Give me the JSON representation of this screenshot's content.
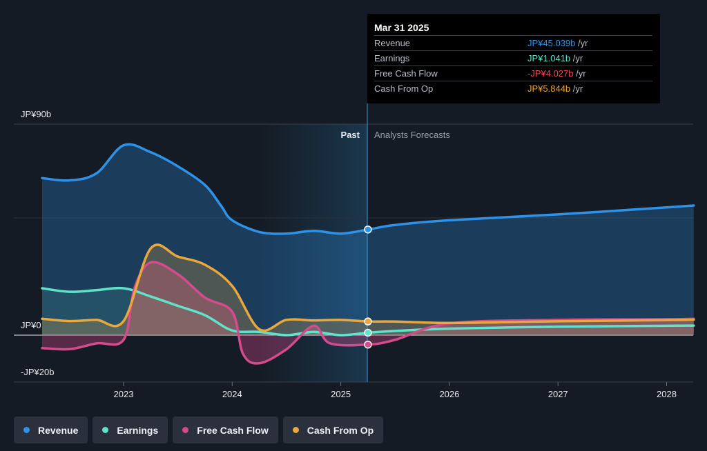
{
  "chart_data": {
    "type": "line",
    "x_ticks": [
      "2023",
      "2024",
      "2025",
      "2026",
      "2027",
      "2028"
    ],
    "y_labels": {
      "top": "JP¥90b",
      "zero": "JP¥0",
      "bottom": "-JP¥20b"
    },
    "ylim": [
      -20,
      90
    ],
    "divider": {
      "past_label": "Past",
      "forecast_label": "Analysts Forecasts"
    },
    "series": [
      {
        "name": "Revenue",
        "color": "#2e93e8",
        "points": [
          [
            2022.25,
            67
          ],
          [
            2022.5,
            66
          ],
          [
            2022.75,
            69
          ],
          [
            2023.0,
            81
          ],
          [
            2023.25,
            78
          ],
          [
            2023.5,
            72
          ],
          [
            2023.75,
            64
          ],
          [
            2023.9,
            55
          ],
          [
            2024.0,
            49
          ],
          [
            2024.25,
            44
          ],
          [
            2024.5,
            43.3
          ],
          [
            2024.75,
            44.5
          ],
          [
            2025.0,
            43.3
          ],
          [
            2025.25,
            45.039
          ],
          [
            2025.5,
            47
          ],
          [
            2026.0,
            49
          ],
          [
            2027.0,
            51.5
          ],
          [
            2028.0,
            54.5
          ],
          [
            2028.25,
            55.3
          ]
        ]
      },
      {
        "name": "Earnings",
        "color": "#5fe3cb",
        "points": [
          [
            2022.25,
            20
          ],
          [
            2022.5,
            18.5
          ],
          [
            2022.75,
            19.2
          ],
          [
            2023.0,
            20
          ],
          [
            2023.25,
            16.5
          ],
          [
            2023.5,
            12.5
          ],
          [
            2023.75,
            8.5
          ],
          [
            2024.0,
            2
          ],
          [
            2024.25,
            1.4
          ],
          [
            2024.5,
            0
          ],
          [
            2024.75,
            1.4
          ],
          [
            2025.0,
            0
          ],
          [
            2025.25,
            1.041
          ],
          [
            2025.5,
            1.8
          ],
          [
            2026.0,
            2.8
          ],
          [
            2027.0,
            3.6
          ],
          [
            2028.0,
            4.0
          ],
          [
            2028.25,
            4.1
          ]
        ]
      },
      {
        "name": "Free Cash Flow",
        "color": "#d54b8c",
        "points": [
          [
            2022.25,
            -5.5
          ],
          [
            2022.5,
            -6
          ],
          [
            2022.75,
            -3.5
          ],
          [
            2023.0,
            -2
          ],
          [
            2023.1,
            20
          ],
          [
            2023.25,
            31
          ],
          [
            2023.5,
            26
          ],
          [
            2023.75,
            16
          ],
          [
            2024.0,
            10
          ],
          [
            2024.1,
            -8
          ],
          [
            2024.25,
            -12
          ],
          [
            2024.5,
            -6
          ],
          [
            2024.75,
            4
          ],
          [
            2024.9,
            -3.5
          ],
          [
            2025.25,
            -4.027
          ],
          [
            2025.5,
            -2
          ],
          [
            2026.0,
            5
          ],
          [
            2027.0,
            6.5
          ],
          [
            2028.0,
            6.8
          ],
          [
            2028.25,
            7
          ]
        ]
      },
      {
        "name": "Cash From Op",
        "color": "#e9a83e",
        "points": [
          [
            2022.25,
            7
          ],
          [
            2022.5,
            6
          ],
          [
            2022.75,
            6.5
          ],
          [
            2023.0,
            6
          ],
          [
            2023.25,
            37
          ],
          [
            2023.5,
            33.5
          ],
          [
            2023.75,
            30
          ],
          [
            2024.0,
            21
          ],
          [
            2024.25,
            2.5
          ],
          [
            2024.5,
            6.5
          ],
          [
            2024.75,
            6.3
          ],
          [
            2025.0,
            6.5
          ],
          [
            2025.25,
            5.844
          ],
          [
            2025.5,
            5.8
          ],
          [
            2026.0,
            5.2
          ],
          [
            2027.0,
            5.9
          ],
          [
            2028.0,
            6.4
          ],
          [
            2028.25,
            6.6
          ]
        ]
      }
    ]
  },
  "tooltip": {
    "date": "Mar 31 2025",
    "rows": [
      {
        "label": "Revenue",
        "value": "JP¥45.039b",
        "unit": "/yr",
        "color": "#2e93e8"
      },
      {
        "label": "Earnings",
        "value": "JP¥1.041b",
        "unit": "/yr",
        "color": "#5fe3cb"
      },
      {
        "label": "Free Cash Flow",
        "value": "-JP¥4.027b",
        "unit": "/yr",
        "color": "#ef4b55"
      },
      {
        "label": "Cash From Op",
        "value": "JP¥5.844b",
        "unit": "/yr",
        "color": "#e9a83e"
      }
    ]
  },
  "legend": [
    {
      "label": "Revenue",
      "color": "#2e93e8"
    },
    {
      "label": "Earnings",
      "color": "#5fe3cb"
    },
    {
      "label": "Free Cash Flow",
      "color": "#d54b8c"
    },
    {
      "label": "Cash From Op",
      "color": "#e9a83e"
    }
  ]
}
